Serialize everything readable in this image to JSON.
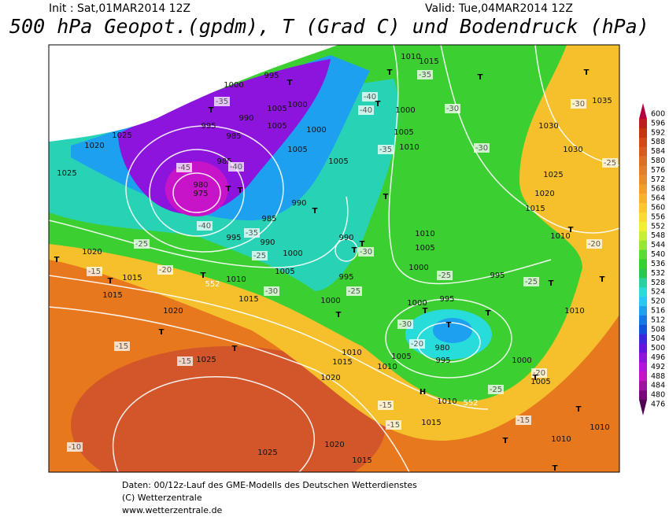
{
  "header": {
    "init": "Init : Sat,01MAR2014 12Z",
    "valid": "Valid: Tue,04MAR2014 12Z",
    "title": "500 hPa Geopot.(gpdm), T (Grad C) und Bodendruck (hPa)"
  },
  "colorbar": {
    "levels": [
      600,
      596,
      592,
      588,
      584,
      580,
      576,
      572,
      568,
      564,
      560,
      556,
      552,
      548,
      544,
      540,
      536,
      532,
      528,
      524,
      520,
      516,
      512,
      508,
      504,
      500,
      496,
      492,
      488,
      484,
      480,
      476
    ],
    "colors": [
      "#b4003c",
      "#be1e1e",
      "#c83214",
      "#d24618",
      "#d85a1e",
      "#de6e22",
      "#e47e28",
      "#ea8c28",
      "#f0a028",
      "#f4b42a",
      "#f8c82c",
      "#fadc2e",
      "#f0f030",
      "#c8f030",
      "#96e632",
      "#5adc32",
      "#32d232",
      "#28c850",
      "#28d2a0",
      "#28dcdc",
      "#28c8f0",
      "#1ea0f0",
      "#1478e6",
      "#1450dc",
      "#3c28dc",
      "#6414dc",
      "#8c14dc",
      "#b414dc",
      "#c814c8",
      "#a0149c",
      "#780a78",
      "#500550"
    ]
  },
  "map": {
    "isobar_labels": [
      "1025",
      "1020",
      "1025",
      "995",
      "985",
      "985",
      "980",
      "975",
      "990",
      "1000",
      "995",
      "1005",
      "1005",
      "1000",
      "1000",
      "1005",
      "1005",
      "990",
      "985",
      "995",
      "990",
      "1000",
      "1005",
      "990",
      "995",
      "1000",
      "1020",
      "1015",
      "1015",
      "1020",
      "1025",
      "1010",
      "1015",
      "1010",
      "1015",
      "1000",
      "1005",
      "1010",
      "1005",
      "1000",
      "1000",
      "995",
      "995",
      "980",
      "995",
      "1000",
      "1005",
      "1010",
      "1010",
      "1015",
      "1020",
      "1010",
      "1015",
      "1025",
      "1020",
      "1015",
      "1035",
      "1030",
      "1030",
      "1025",
      "1020",
      "1015",
      "1010",
      "1010",
      "1005",
      "1010",
      "1010",
      "1010"
    ],
    "isotherm_labels": [
      "-35",
      "-40",
      "-45",
      "-40",
      "-35",
      "-25",
      "-20",
      "-15",
      "-25",
      "-30",
      "-30",
      "-25",
      "-25",
      "-30",
      "-20",
      "-25",
      "-15",
      "-15",
      "-15",
      "-15",
      "-10",
      "-15",
      "-20",
      "-30",
      "-30",
      "-25",
      "-20",
      "-40",
      "-40",
      "-35",
      "-30",
      "-35",
      "-25"
    ],
    "height_labels": [
      "552",
      "552"
    ],
    "markers": [
      "T",
      "T",
      "T",
      "T",
      "T",
      "T",
      "T",
      "T",
      "T",
      "T",
      "T",
      "T",
      "T",
      "T",
      "T",
      "T",
      "T",
      "T",
      "T",
      "T",
      "T",
      "T",
      "T",
      "T",
      "T",
      "T",
      "T",
      "T",
      "H"
    ]
  },
  "footer": {
    "line1": "Daten: 00/12z-Lauf des GME-Modells des Deutschen Wetterdienstes",
    "line2": "(C) Wetterzentrale",
    "line3": "www.wetterzentrale.de"
  }
}
